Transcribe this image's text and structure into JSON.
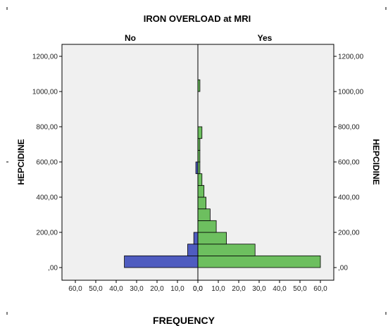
{
  "chart_data": {
    "type": "bar",
    "orientation": "horizontal-population-pyramid",
    "title": "IRON OVERLOAD at MRI",
    "panels": [
      "No",
      "Yes"
    ],
    "xlabel": "FREQUENCY",
    "ylabel_left": "HEPCIDINE",
    "ylabel_right": "HEPCIDINE",
    "x_ticks_left": [
      "60,0",
      "50,0",
      "40,0",
      "30,0",
      "20,0",
      "10,0",
      "0,0"
    ],
    "x_ticks_right": [
      "0,0",
      "10,0",
      "20,0",
      "30,0",
      "40,0",
      "50,0",
      "60,0"
    ],
    "xlim": [
      0,
      60
    ],
    "y_ticks": [
      ",00",
      "200,00",
      "400,00",
      "600,00",
      "800,00",
      "1000,00",
      "1200,00"
    ],
    "ylim": [
      -25,
      1250
    ],
    "bin_width": 66.67,
    "series": [
      {
        "name": "No",
        "color": "#4f5cc0",
        "bins": [
          {
            "y_low": 0,
            "y_high": 66.67,
            "count": 36
          },
          {
            "y_low": 66.67,
            "y_high": 133.33,
            "count": 5
          },
          {
            "y_low": 133.33,
            "y_high": 200,
            "count": 2
          },
          {
            "y_low": 533.33,
            "y_high": 600,
            "count": 1
          }
        ]
      },
      {
        "name": "Yes",
        "color": "#6dbf5f",
        "bins": [
          {
            "y_low": 0,
            "y_high": 66.67,
            "count": 60
          },
          {
            "y_low": 66.67,
            "y_high": 133.33,
            "count": 28
          },
          {
            "y_low": 133.33,
            "y_high": 200,
            "count": 14
          },
          {
            "y_low": 200,
            "y_high": 266.67,
            "count": 9
          },
          {
            "y_low": 266.67,
            "y_high": 333.33,
            "count": 6
          },
          {
            "y_low": 333.33,
            "y_high": 400,
            "count": 4
          },
          {
            "y_low": 400,
            "y_high": 466.67,
            "count": 3
          },
          {
            "y_low": 466.67,
            "y_high": 533.33,
            "count": 2
          },
          {
            "y_low": 533.33,
            "y_high": 600,
            "count": 1
          },
          {
            "y_low": 600,
            "y_high": 666.67,
            "count": 1
          },
          {
            "y_low": 666.67,
            "y_high": 733.33,
            "count": 1
          },
          {
            "y_low": 733.33,
            "y_high": 800,
            "count": 2
          },
          {
            "y_low": 1000,
            "y_high": 1066.67,
            "count": 1
          }
        ]
      }
    ],
    "grid": false,
    "plot_background": "#f0f0f0"
  }
}
